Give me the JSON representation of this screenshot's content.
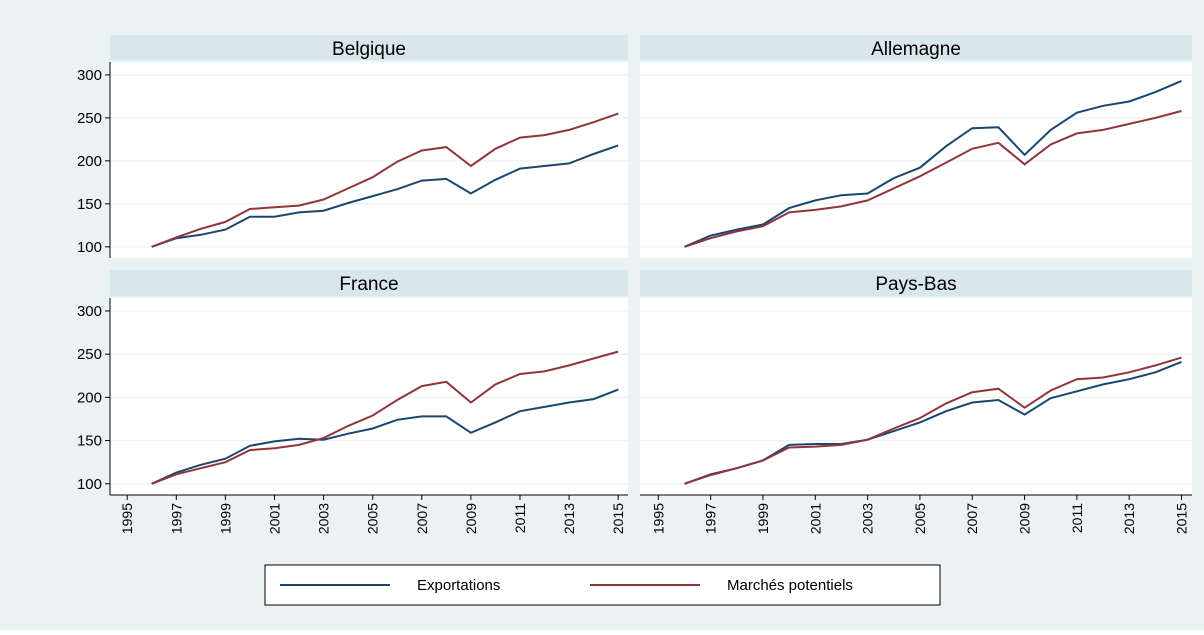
{
  "chart_data": {
    "type": "line",
    "x": [
      1996,
      1997,
      1998,
      1999,
      2000,
      2001,
      2002,
      2003,
      2004,
      2005,
      2006,
      2007,
      2008,
      2009,
      2010,
      2011,
      2012,
      2013,
      2014,
      2015
    ],
    "xlim": [
      1994.3,
      2015.4
    ],
    "xticks": [
      1995,
      1997,
      1999,
      2001,
      2003,
      2005,
      2007,
      2009,
      2011,
      2013,
      2015
    ],
    "ylim": [
      87,
      315
    ],
    "yticks": [
      100,
      150,
      200,
      250,
      300
    ],
    "grid": true,
    "series": [
      {
        "name": "Exportations",
        "color": "#1a476f"
      },
      {
        "name": "Marchés potentiels",
        "color": "#90353b"
      }
    ],
    "panels": [
      {
        "title": "Belgique",
        "series": [
          {
            "values": [
              100,
              110,
              114,
              120,
              135,
              135,
              140,
              142,
              151,
              159,
              167,
              177,
              179,
              162,
              178,
              191,
              194,
              197,
              208,
              218
            ]
          },
          {
            "values": [
              100,
              111,
              121,
              129,
              144,
              146,
              148,
              155,
              168,
              181,
              199,
              212,
              216,
              194,
              214,
              227,
              230,
              236,
              245,
              255
            ]
          }
        ]
      },
      {
        "title": "Allemagne",
        "series": [
          {
            "values": [
              100,
              113,
              120,
              126,
              145,
              154,
              160,
              162,
              180,
              192,
              217,
              238,
              239,
              207,
              236,
              256,
              264,
              269,
              280,
              293
            ]
          },
          {
            "values": [
              100,
              110,
              118,
              124,
              140,
              143,
              147,
              154,
              168,
              182,
              198,
              214,
              221,
              196,
              219,
              232,
              236,
              243,
              250,
              258
            ]
          }
        ]
      },
      {
        "title": "France",
        "series": [
          {
            "values": [
              100,
              113,
              122,
              129,
              144,
              149,
              152,
              151,
              158,
              164,
              174,
              178,
              178,
              159,
              171,
              184,
              189,
              194,
              198,
              209
            ]
          },
          {
            "values": [
              100,
              111,
              118,
              125,
              139,
              141,
              145,
              153,
              167,
              179,
              197,
              213,
              218,
              194,
              215,
              227,
              230,
              237,
              245,
              253
            ]
          }
        ]
      },
      {
        "title": "Pays-Bas",
        "series": [
          {
            "values": [
              100,
              111,
              118,
              127,
              145,
              146,
              146,
              151,
              161,
              171,
              184,
              194,
              197,
              180,
              199,
              207,
              215,
              221,
              229,
              241
            ]
          },
          {
            "values": [
              100,
              110,
              118,
              127,
              142,
              143,
              145,
              151,
              164,
              176,
              193,
              206,
              210,
              188,
              208,
              221,
              223,
              229,
              237,
              246
            ]
          }
        ]
      }
    ]
  }
}
